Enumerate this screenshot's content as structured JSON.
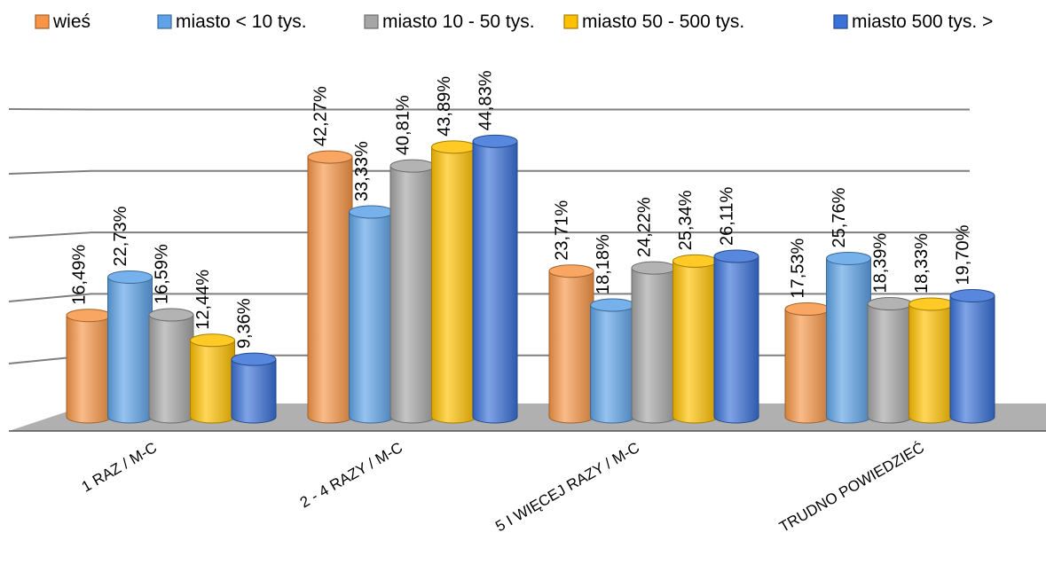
{
  "chart_data": {
    "type": "bar",
    "style": "3d-cylinder",
    "categories": [
      "1 RAZ / M-C",
      "2 - 4 RAZY / M-C",
      "5 I WIĘCEJ RAZY / M-C",
      "TRUDNO POWIEDZIEĆ"
    ],
    "series": [
      {
        "name": "wieś",
        "color": "#f79646",
        "values": [
          16.49,
          42.27,
          23.71,
          17.53
        ],
        "labels": [
          "16,49%",
          "42,27%",
          "23,71%",
          "17,53%"
        ]
      },
      {
        "name": "miasto < 10 tys.",
        "color": "#5ea3e8",
        "values": [
          22.73,
          33.33,
          18.18,
          25.76
        ],
        "labels": [
          "22,73%",
          "33,33%",
          "18,18%",
          "25,76%"
        ]
      },
      {
        "name": "miasto 10 - 50 tys.",
        "color": "#a6a6a6",
        "values": [
          16.59,
          40.81,
          24.22,
          18.39
        ],
        "labels": [
          "16,59%",
          "40,81%",
          "24,22%",
          "18,39%"
        ]
      },
      {
        "name": "miasto 50 - 500 tys.",
        "color": "#ffc000",
        "values": [
          12.44,
          43.89,
          25.34,
          18.33
        ],
        "labels": [
          "12,44%",
          "43,89%",
          "25,34%",
          "18,33%"
        ]
      },
      {
        "name": "miasto 500 tys. >",
        "color": "#3a72d8",
        "values": [
          9.36,
          44.83,
          26.11,
          19.7
        ],
        "labels": [
          "9,36%",
          "44,83%",
          "26,11%",
          "19,70%"
        ]
      }
    ],
    "ylim": [
      0,
      50
    ],
    "gridlines": true,
    "legend_position": "top",
    "title": "",
    "xlabel": "",
    "ylabel": ""
  }
}
